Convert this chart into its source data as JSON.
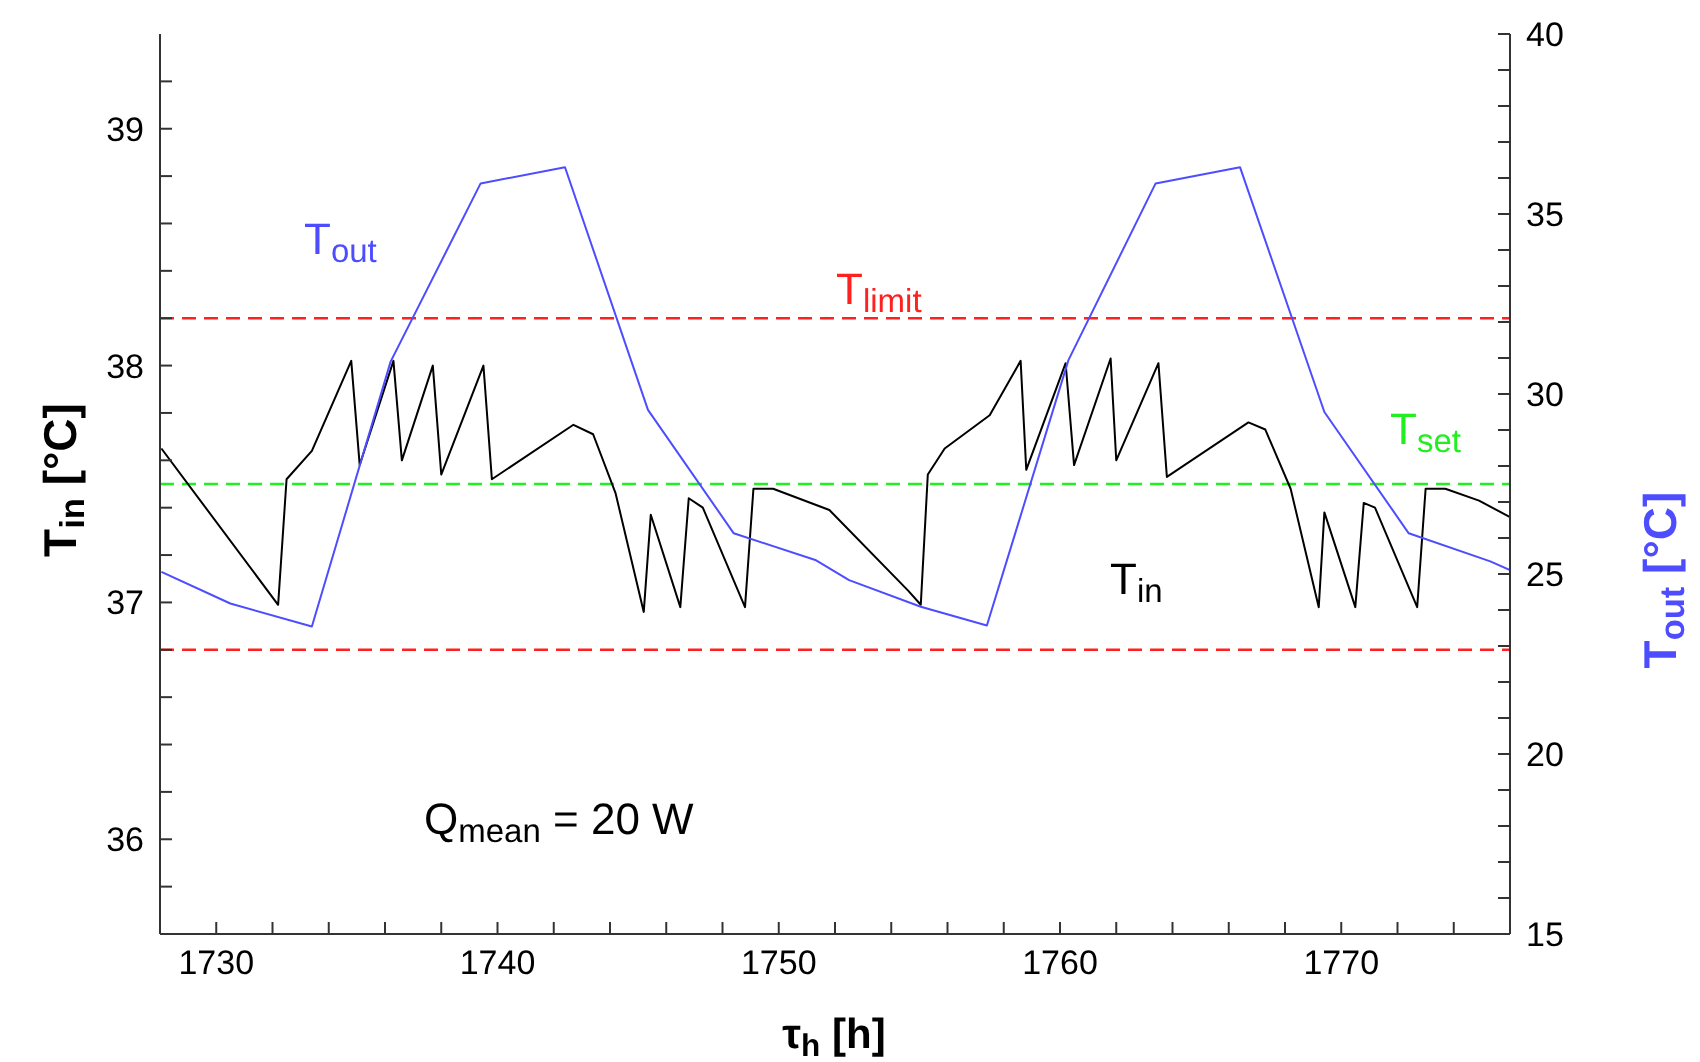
{
  "chart_data": {
    "type": "line",
    "xlabel": "τ$_{h}$  [h]",
    "ylabel": "T$_{in}$ [°C]",
    "y2label": "T$_{out}$ [°C]",
    "xlim": [
      1728,
      1776
    ],
    "xticks": [
      {
        "value": 1728,
        "label": null
      },
      1730,
      {
        "value": 1732,
        "label": null
      },
      {
        "value": 1734,
        "label": null
      },
      {
        "value": 1736,
        "label": null
      },
      {
        "value": 1738,
        "label": null
      },
      1740,
      {
        "value": 1742,
        "label": null
      },
      {
        "value": 1744,
        "label": null
      },
      {
        "value": 1746,
        "label": null
      },
      {
        "value": 1748,
        "label": null
      },
      1750,
      {
        "value": 1752,
        "label": null
      },
      {
        "value": 1754,
        "label": null
      },
      {
        "value": 1756,
        "label": null
      },
      {
        "value": 1758,
        "label": null
      },
      1760,
      {
        "value": 1762,
        "label": null
      },
      {
        "value": 1764,
        "label": null
      },
      {
        "value": 1766,
        "label": null
      },
      {
        "value": 1768,
        "label": null
      },
      1770,
      {
        "value": 1772,
        "label": null
      },
      {
        "value": 1774,
        "label": null
      }
    ],
    "ylim": [
      35.6,
      39.4
    ],
    "yticks": [
      {
        "value": 35.8,
        "label": null
      },
      36,
      {
        "value": 36.2,
        "label": null
      },
      {
        "value": 36.4,
        "label": null
      },
      {
        "value": 36.6,
        "label": null
      },
      {
        "value": 36.8,
        "label": null
      },
      37,
      {
        "value": 37.2,
        "label": null
      },
      {
        "value": 37.4,
        "label": null
      },
      {
        "value": 37.6,
        "label": null
      },
      {
        "value": 37.8,
        "label": null
      },
      38,
      {
        "value": 38.2,
        "label": null
      },
      {
        "value": 38.4,
        "label": null
      },
      {
        "value": 38.6,
        "label": null
      },
      {
        "value": 38.8,
        "label": null
      },
      39,
      {
        "value": 39.2,
        "label": null
      }
    ],
    "y2lim": [
      15,
      40
    ],
    "y2ticks": [
      15,
      {
        "value": 16,
        "label": null
      },
      {
        "value": 17,
        "label": null
      },
      {
        "value": 18,
        "label": null
      },
      {
        "value": 19,
        "label": null
      },
      20,
      {
        "value": 21,
        "label": null
      },
      {
        "value": 22,
        "label": null
      },
      {
        "value": 23,
        "label": null
      },
      {
        "value": 24,
        "label": null
      },
      25,
      {
        "value": 26,
        "label": null
      },
      {
        "value": 27,
        "label": null
      },
      {
        "value": 28,
        "label": null
      },
      {
        "value": 29,
        "label": null
      },
      30,
      {
        "value": 31,
        "label": null
      },
      {
        "value": 32,
        "label": null
      },
      {
        "value": 33,
        "label": null
      },
      {
        "value": 34,
        "label": null
      },
      35,
      {
        "value": 36,
        "label": null
      },
      {
        "value": 37,
        "label": null
      },
      {
        "value": 38,
        "label": null
      },
      {
        "value": 39,
        "label": null
      },
      40
    ],
    "grid": false,
    "legend": false,
    "marker": "none",
    "line_style": "solid",
    "series": [
      {
        "name": "T$_{in}$",
        "color": "#000000",
        "x": [
          1728.05,
          1732.2,
          1732.5,
          1733.4,
          1734.8,
          1735.1,
          1736.3,
          1736.6,
          1737.7,
          1738.0,
          1739.5,
          1739.8,
          1742.7,
          1743.4,
          1744.2,
          1745.2,
          1745.45,
          1746.5,
          1746.8,
          1747.3,
          1748.8,
          1749.1,
          1749.8,
          1751.8,
          1754.6,
          1755.05,
          1755.3,
          1755.9,
          1757.5,
          1758.6,
          1758.8,
          1760.2,
          1760.5,
          1761.8,
          1762.0,
          1763.5,
          1763.8,
          1766.7,
          1767.3,
          1768.2,
          1769.2,
          1769.4,
          1770.5,
          1770.8,
          1771.2,
          1772.7,
          1773.0,
          1773.7,
          1774.9,
          1776.0
        ],
        "values": [
          37.65,
          36.99,
          37.52,
          37.64,
          38.02,
          37.58,
          38.02,
          37.6,
          38.0,
          37.54,
          38.0,
          37.52,
          37.75,
          37.71,
          37.46,
          36.96,
          37.37,
          36.98,
          37.44,
          37.4,
          36.98,
          37.48,
          37.48,
          37.39,
          37.05,
          36.99,
          37.54,
          37.65,
          37.79,
          38.02,
          37.56,
          38.01,
          37.58,
          38.03,
          37.6,
          38.01,
          37.53,
          37.76,
          37.73,
          37.48,
          36.98,
          37.38,
          36.98,
          37.42,
          37.4,
          36.98,
          37.48,
          37.48,
          37.43,
          37.36
        ]
      },
      {
        "name": "T$_{out}$",
        "color": "#4d4dff",
        "axis": "y2",
        "x": [
          1728.05,
          1730.5,
          1733.4,
          1736.2,
          1739.4,
          1742.4,
          1745.35,
          1748.4,
          1751.3,
          1752.5,
          1755.05,
          1757.4,
          1760.3,
          1763.4,
          1766.4,
          1769.4,
          1772.4,
          1775.3,
          1776.0
        ],
        "values": [
          25.06,
          24.18,
          23.54,
          30.9,
          35.85,
          36.3,
          29.56,
          26.13,
          25.39,
          24.83,
          24.09,
          23.57,
          30.94,
          35.85,
          36.3,
          29.5,
          26.13,
          25.35,
          25.11
        ]
      }
    ],
    "ref_lines": [
      {
        "axis": "y",
        "value": 38.2,
        "label": "T$_{limit}$",
        "color": "#ff2020",
        "line_style": "dashed"
      },
      {
        "axis": "y",
        "value": 36.8,
        "label": null,
        "color": "#ff2020",
        "line_style": "dashed"
      },
      {
        "axis": "y",
        "value": 37.5,
        "label": "T$_{set}$",
        "color": "#22ee22",
        "line_style": "dashed"
      }
    ],
    "annotations": [
      "Q$_{mean}$ = 20 W"
    ]
  }
}
